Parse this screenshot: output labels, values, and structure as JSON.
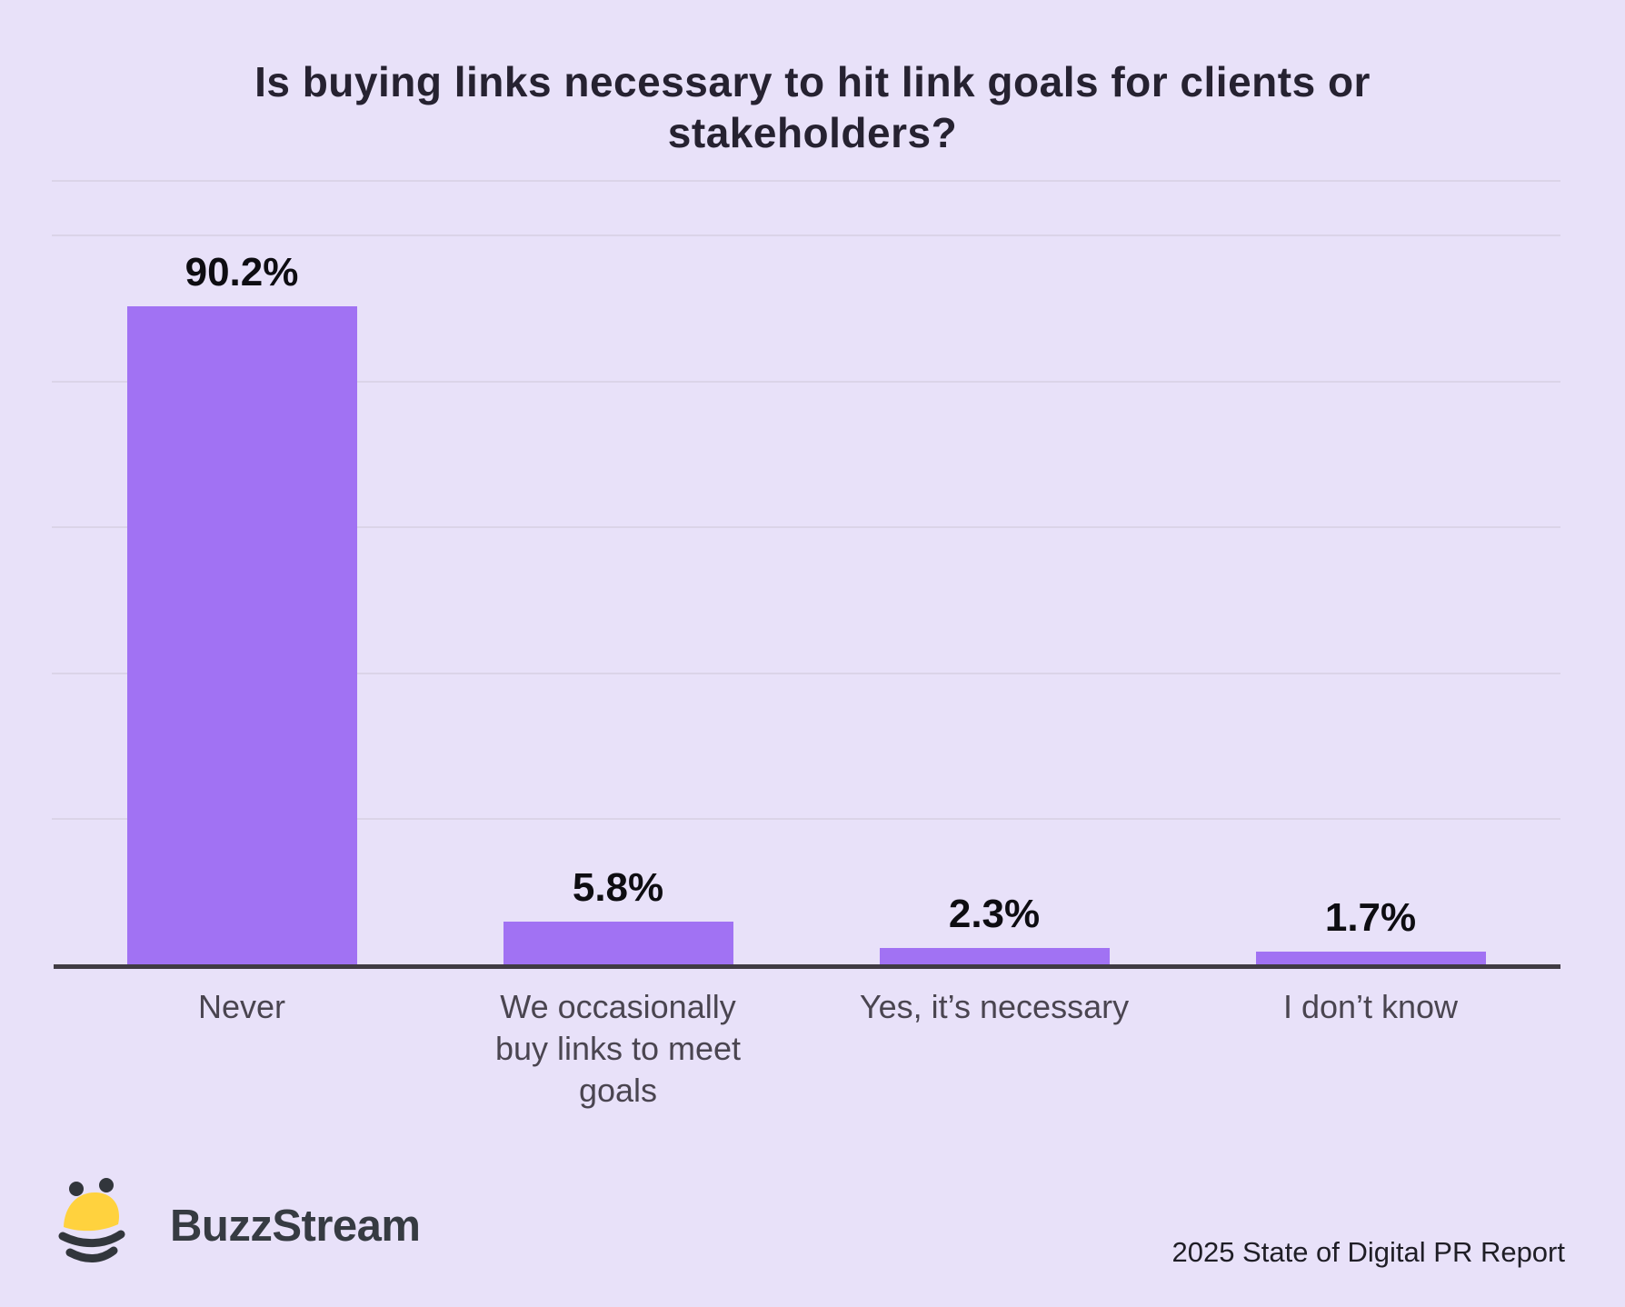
{
  "title": "Is buying links necessary to hit link goals for clients or stakeholders?",
  "chart_data": {
    "type": "bar",
    "title": "Is buying links necessary to hit link goals for clients or stakeholders?",
    "categories": [
      "Never",
      "We occasionally buy links to meet goals",
      "Yes, it’s necessary",
      "I don’t know"
    ],
    "values": [
      90.2,
      5.8,
      2.3,
      1.7
    ],
    "value_labels": [
      "90.2%",
      "5.8%",
      "2.3%",
      "1.7%"
    ],
    "xlabel": "",
    "ylabel": "",
    "ylim": [
      0,
      107.5
    ],
    "gridlines_pct": [
      20,
      40,
      60,
      80,
      100,
      107.5
    ],
    "grid": "horizontal-only",
    "legend": "none",
    "bar_color": "#A172F3",
    "background_color": "#E8E1F9",
    "axis_line_color": "#403B44"
  },
  "footer": {
    "brand": "BuzzStream",
    "logo_icon": "bee-icon",
    "attribution": "2025 State of Digital PR Report"
  },
  "colors": {
    "background": "#E8E1F9",
    "bar": "#A172F3",
    "gridline": "#DBD4E8",
    "axis": "#403B44",
    "title_text": "#262231",
    "value_text": "#0E0D12",
    "category_text": "#4A4550",
    "brand_text": "#363B42",
    "bee_yellow": "#FFD23E",
    "bee_dark": "#32363C"
  }
}
